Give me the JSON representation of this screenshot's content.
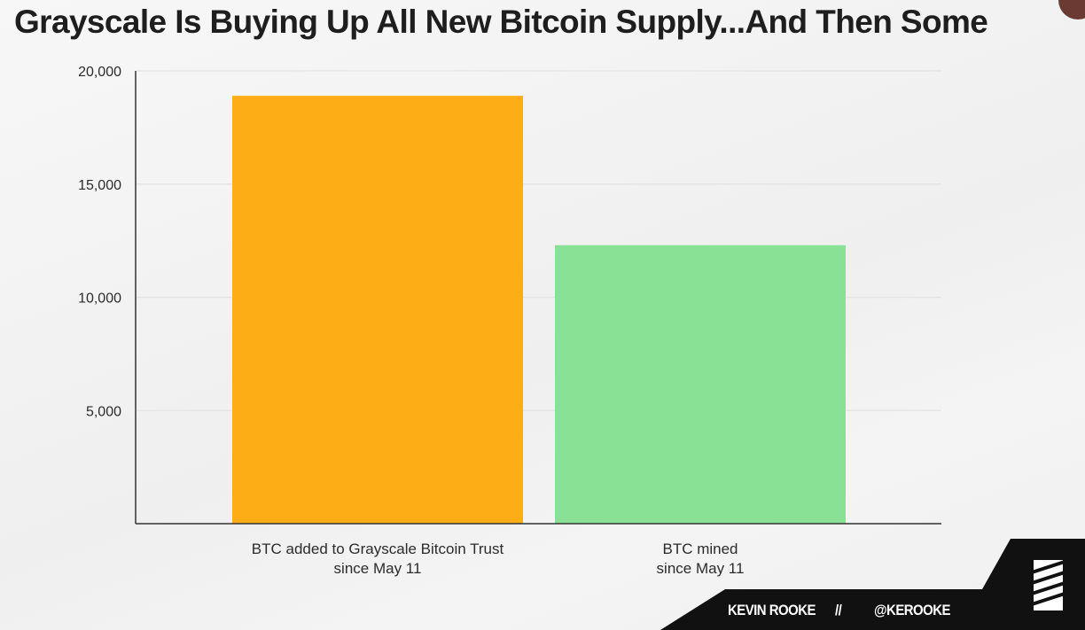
{
  "title": "Grayscale Is Buying Up All New Bitcoin Supply...And Then Some",
  "colors": {
    "bar1": "#fdad16",
    "bar2": "#89e195",
    "axis": "#333333",
    "grid": "#e3e3e3",
    "footer_bg": "#111111",
    "brand_dot": "#6a3a33"
  },
  "footer": {
    "author": "KEVIN ROOKE",
    "separator": "//",
    "handle": "@KEROOKE",
    "logo_icon": "striped-square-logo-icon"
  },
  "chart_data": {
    "type": "bar",
    "title": "",
    "xlabel": "",
    "ylabel": "",
    "categories": [
      [
        "BTC added to Grayscale Bitcoin Trust",
        "since May 11"
      ],
      [
        "BTC mined",
        "since May 11"
      ]
    ],
    "values": [
      18900,
      12300
    ],
    "ylim": [
      0,
      20000
    ],
    "yticks": [
      5000,
      10000,
      15000,
      20000
    ],
    "ytick_labels": [
      "5,000",
      "10,000",
      "15,000",
      "20,000"
    ],
    "grid": true,
    "legend": "none"
  }
}
